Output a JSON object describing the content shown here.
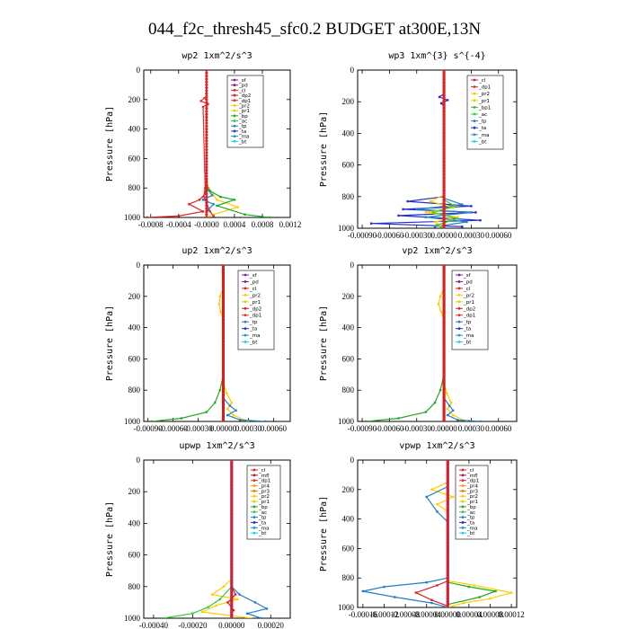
{
  "title": "044_f2c_thresh45_sfc0.2  BUDGET at300E,13N",
  "colors": {
    "sf": "#7a1fa2",
    "pd": "#8b1a8b",
    "cl": "#dd2222",
    "dp2": "#d42020",
    "dp1": "#e03030",
    "pr2": "#ffcc00",
    "pr1": "#d8d800",
    "bp": "#22aa22",
    "ac": "#33cc33",
    "tp": "#1e7fc8",
    "ta": "#2233cc",
    "ma": "#1a9ac8",
    "bt": "#22d0e0",
    "mfl": "#aa1155",
    "dp3": "#ff4444",
    "pr3": "#ff7700",
    "pr4": "#ff9900",
    "bp1": "#33bb33",
    "bt_line": "#cc0000"
  },
  "chart_data": [
    {
      "id": "wp2",
      "type": "line",
      "title": "wp2   1xm^2/s^3",
      "ylabel": "Pressure  [hPa]",
      "ylim": [
        1000,
        0
      ],
      "xlim": [
        -0.0009,
        0.0012
      ],
      "yticks": [
        "0",
        "200",
        "400",
        "600",
        "800",
        "1000"
      ],
      "xticks": [
        "-0.0008",
        "-0.0004",
        "-0.0000",
        "0.0004",
        "0.0008",
        "0.0012"
      ],
      "xtick_values": [
        -0.0008,
        -0.0004,
        0.0,
        0.0004,
        0.0008,
        0.0012
      ],
      "legend": [
        "_sf",
        "_pd",
        "_cl",
        "_dp2",
        "_dp1",
        "_pr2",
        "_pr1",
        "_bp",
        "_ac",
        "_tp",
        "_ta",
        "_ma",
        "_bt"
      ],
      "series": [
        {
          "key": "pr2",
          "x": [
            0.0,
            3e-05,
            0.00015,
            0.00045,
            0.0001,
            0.0
          ],
          "y": [
            750,
            800,
            880,
            930,
            980,
            1000
          ]
        },
        {
          "key": "bp",
          "x": [
            0.0,
            5e-05,
            0.0002,
            0.0004,
            0.00015,
            0.00055,
            0.0009
          ],
          "y": [
            780,
            820,
            860,
            880,
            920,
            980,
            1000
          ]
        },
        {
          "key": "cl",
          "x": [
            0.0,
            -2e-05,
            -0.0001,
            -0.00025,
            -5e-05,
            -0.0004,
            -0.00085
          ],
          "y": [
            780,
            840,
            880,
            910,
            960,
            990,
            1000
          ]
        },
        {
          "key": "dp1",
          "x": [
            -3e-05,
            -8e-05,
            2e-05,
            -5e-05,
            -2e-05,
            -4e-05,
            0.0,
            5e-05,
            0.0001
          ],
          "y": [
            190,
            210,
            230,
            250,
            800,
            860,
            900,
            960,
            990
          ]
        },
        {
          "key": "tp",
          "x": [
            0.0,
            8e-05,
            -5e-05,
            0.0001,
            2e-05
          ],
          "y": [
            800,
            850,
            880,
            910,
            950
          ]
        },
        {
          "key": "sf",
          "x": [
            0.0,
            0.0
          ],
          "y": [
            0,
            1000
          ],
          "marker": true
        }
      ]
    },
    {
      "id": "wp3",
      "type": "line",
      "title": "wp3   1xm^{3} s^{-4}",
      "ylabel": "Pressure  [hPa]",
      "ylim": [
        1000,
        0
      ],
      "xlim": [
        -0.00095,
        0.0008
      ],
      "yticks": [
        "0",
        "200",
        "400",
        "600",
        "800",
        "1000"
      ],
      "xticks": [
        "-0.00090",
        "-0.00060",
        "-0.00030",
        "0.00000",
        "0.00030",
        "0.00060"
      ],
      "xtick_values": [
        -0.0009,
        -0.0006,
        -0.0003,
        0.0,
        0.0003,
        0.0006
      ],
      "legend": [
        "_cl",
        "_dp1",
        "_pr2",
        "_pr1",
        "_bp1",
        "_ac",
        "_tp",
        "_ta",
        "_ma",
        "_bt"
      ],
      "series": [
        {
          "key": "ta",
          "x": [
            0.0,
            -0.0004,
            0.0003,
            -0.00045,
            0.00035,
            -0.0005,
            0.0004,
            -0.0008,
            0.0002
          ],
          "y": [
            800,
            830,
            860,
            880,
            900,
            920,
            950,
            970,
            990
          ]
        },
        {
          "key": "tp",
          "x": [
            0.0,
            0.0002,
            -0.0003,
            0.0003,
            -0.0002,
            0.00025,
            -0.0001
          ],
          "y": [
            810,
            850,
            880,
            900,
            930,
            960,
            990
          ]
        },
        {
          "key": "pr2",
          "x": [
            0.0,
            -0.00015,
            0.0001,
            -0.0002,
            0.00015,
            -0.0001,
            0.0
          ],
          "y": [
            790,
            830,
            870,
            900,
            930,
            960,
            1000
          ]
        },
        {
          "key": "ac",
          "x": [
            0.0,
            0.00012,
            -0.00012,
            0.00015,
            -8e-05,
            0.0
          ],
          "y": [
            820,
            860,
            900,
            940,
            980,
            1000
          ]
        },
        {
          "key": "ta",
          "x": [
            0.0,
            -5e-05,
            4e-05,
            -3e-05,
            0.0
          ],
          "y": [
            150,
            170,
            190,
            210,
            230
          ]
        },
        {
          "key": "cl",
          "x": [
            0.0,
            0.0
          ],
          "y": [
            0,
            1000
          ],
          "marker": true,
          "thick": true
        }
      ]
    },
    {
      "id": "up2",
      "type": "line",
      "title": "up2   1xm^2/s^3",
      "ylabel": "Pressure  [hPa]",
      "ylim": [
        1000,
        0
      ],
      "xlim": [
        -0.00095,
        0.0008
      ],
      "yticks": [
        "0",
        "200",
        "400",
        "600",
        "800",
        "1000"
      ],
      "xticks": [
        "-0.00090",
        "-0.00060",
        "-0.00030",
        "0.00000",
        "0.00030",
        "0.00060"
      ],
      "xtick_values": [
        -0.0009,
        -0.0006,
        -0.0003,
        0.0,
        0.0003,
        0.0006
      ],
      "legend": [
        "_sf",
        "_pd",
        "_cl",
        "_pr2",
        "_pr1",
        "_dp2",
        "_dp1",
        "_tp",
        "_ta",
        "_ma",
        "_bt"
      ],
      "series": [
        {
          "key": "pr2",
          "x": [
            0.0,
            -4e-05,
            -5e-05,
            -3e-05,
            0.0
          ],
          "y": [
            150,
            200,
            250,
            300,
            350
          ]
        },
        {
          "key": "bp",
          "x": [
            0.0,
            -4e-05,
            -0.0001,
            -0.0002,
            -0.0005,
            -0.00085
          ],
          "y": [
            700,
            800,
            880,
            940,
            980,
            1000
          ]
        },
        {
          "key": "pr2",
          "x": [
            0.0,
            4e-05,
            0.0001,
            5e-05,
            0.00012,
            0.0003
          ],
          "y": [
            750,
            820,
            880,
            920,
            960,
            1000
          ]
        },
        {
          "key": "tp",
          "x": [
            0.0,
            8e-05,
            0.00015,
            5e-05,
            0.0002,
            0.0005
          ],
          "y": [
            850,
            900,
            930,
            960,
            990,
            1000
          ]
        },
        {
          "key": "bt_line",
          "x": [
            0.0,
            0.0
          ],
          "y": [
            0,
            1000
          ],
          "marker": true,
          "thick": true
        }
      ]
    },
    {
      "id": "vp2",
      "type": "line",
      "title": "vp2   1xm^2/s^3",
      "ylabel": "Pressure  [hPa]",
      "ylim": [
        1000,
        0
      ],
      "xlim": [
        -0.00095,
        0.0008
      ],
      "yticks": [
        "0",
        "200",
        "400",
        "600",
        "800",
        "1000"
      ],
      "xticks": [
        "-0.00090",
        "-0.00060",
        "-0.00030",
        "0.00000",
        "0.00030",
        "0.00060"
      ],
      "xtick_values": [
        -0.0009,
        -0.0006,
        -0.0003,
        0.0,
        0.0003,
        0.0006
      ],
      "legend": [
        "_sf",
        "_pd",
        "_cl",
        "_pr2",
        "_pr1",
        "_dp2",
        "_dp1",
        "_tp",
        "_ta",
        "_ma",
        "_bt"
      ],
      "series": [
        {
          "key": "pr2",
          "x": [
            0.0,
            -4e-05,
            -6e-05,
            -3e-05,
            0.0
          ],
          "y": [
            150,
            200,
            250,
            300,
            350
          ]
        },
        {
          "key": "bp",
          "x": [
            0.0,
            -4e-05,
            -0.0001,
            -0.0002,
            -0.0005,
            -0.00085
          ],
          "y": [
            700,
            800,
            880,
            940,
            980,
            1000
          ]
        },
        {
          "key": "pr2",
          "x": [
            0.0,
            3e-05,
            8e-05,
            4e-05,
            0.0001,
            0.00025
          ],
          "y": [
            750,
            820,
            880,
            920,
            960,
            1000
          ]
        },
        {
          "key": "tp",
          "x": [
            0.0,
            6e-05,
            0.0001,
            4e-05,
            0.00015,
            0.0004
          ],
          "y": [
            850,
            900,
            930,
            960,
            990,
            1000
          ]
        },
        {
          "key": "bt_line",
          "x": [
            0.0,
            0.0
          ],
          "y": [
            0,
            1000
          ],
          "marker": true,
          "thick": true
        }
      ]
    },
    {
      "id": "upwp",
      "type": "line",
      "title": "upwp   1xm^2/s^3",
      "ylabel": "Pressure  [hPa]",
      "ylim": [
        1000,
        0
      ],
      "xlim": [
        -0.00045,
        0.0003
      ],
      "yticks": [
        "0",
        "200",
        "400",
        "600",
        "800",
        "1000"
      ],
      "xticks": [
        "-0.00040",
        "-0.00020",
        "0.00000",
        "0.00020"
      ],
      "xtick_values": [
        -0.0004,
        -0.0002,
        0.0,
        0.0002
      ],
      "legend": [
        "_cl",
        "_mfl",
        "_dp1",
        "_pr4",
        "_pr3",
        "_pr2",
        "_pr1",
        "_bp",
        "_ac",
        "_tp",
        "_ta",
        "_ma",
        "_bt"
      ],
      "series": [
        {
          "key": "pr2",
          "x": [
            0.0,
            -4e-05,
            -0.0001,
            3e-05,
            -8e-05,
            -0.00015,
            0.0001
          ],
          "y": [
            750,
            800,
            850,
            880,
            920,
            960,
            1000
          ]
        },
        {
          "key": "tp",
          "x": [
            0.0,
            4e-05,
            0.00012,
            0.00018,
            8e-05,
            0.00015
          ],
          "y": [
            800,
            850,
            900,
            940,
            970,
            1000
          ]
        },
        {
          "key": "ac",
          "x": [
            0.0,
            -6e-05,
            -0.00012,
            -0.0002,
            -0.00035
          ],
          "y": [
            800,
            880,
            930,
            970,
            1000
          ]
        },
        {
          "key": "cl",
          "x": [
            0.0,
            2e-05,
            -2e-05,
            1e-05
          ],
          "y": [
            800,
            850,
            900,
            950
          ]
        },
        {
          "key": "sf",
          "x": [
            0.0,
            0.0
          ],
          "y": [
            0,
            1000
          ],
          "marker": true,
          "thick": true
        }
      ]
    },
    {
      "id": "vpwp",
      "type": "line",
      "title": "vpwp   1xm^2/s^3",
      "ylabel": "Pressure  [hPa]",
      "ylim": [
        1000,
        0
      ],
      "xlim": [
        -0.00017,
        0.00013
      ],
      "yticks": [
        "0",
        "200",
        "400",
        "600",
        "800",
        "1000"
      ],
      "xticks": [
        "-0.00016",
        "-0.00012",
        "-0.00008",
        "-0.00004",
        "0.00000",
        "0.00004",
        "0.00008",
        "0.00012"
      ],
      "xtick_values": [
        -0.00016,
        -0.00012,
        -8e-05,
        -4e-05,
        0.0,
        4e-05,
        8e-05,
        0.00012
      ],
      "legend": [
        "_cl",
        "_mfl",
        "_dp1",
        "_pr4",
        "_pr3",
        "_pr2",
        "_pr1",
        "_bp",
        "_ac",
        "_tp",
        "_ta",
        "_ma",
        "_bt"
      ],
      "series": [
        {
          "key": "tp",
          "x": [
            0.0,
            -4e-05,
            -0.00012,
            -0.00016,
            -0.0001,
            -3e-05,
            0.0
          ],
          "y": [
            800,
            830,
            860,
            890,
            930,
            970,
            1000
          ]
        },
        {
          "key": "pr2",
          "x": [
            0.0,
            5e-05,
            0.00012,
            8e-05,
            3e-05,
            0.0
          ],
          "y": [
            820,
            850,
            900,
            940,
            970,
            1000
          ]
        },
        {
          "key": "bp",
          "x": [
            0.0,
            4e-05,
            9e-05,
            6e-05,
            0.0
          ],
          "y": [
            830,
            860,
            890,
            930,
            980
          ]
        },
        {
          "key": "cl",
          "x": [
            0.0,
            -2e-05,
            -6e-05,
            -3e-05,
            0.0
          ],
          "y": [
            820,
            850,
            900,
            950,
            990
          ]
        },
        {
          "key": "pr2",
          "x": [
            0.0,
            -3e-05,
            1e-05,
            -2e-05,
            0.0
          ],
          "y": [
            150,
            200,
            250,
            300,
            350
          ]
        },
        {
          "key": "tp",
          "x": [
            0.0,
            -4e-05,
            -2e-05,
            0.0
          ],
          "y": [
            180,
            250,
            350,
            420
          ]
        },
        {
          "key": "sf",
          "x": [
            0.0,
            0.0
          ],
          "y": [
            0,
            1000
          ],
          "marker": true,
          "thick": true
        }
      ]
    }
  ]
}
